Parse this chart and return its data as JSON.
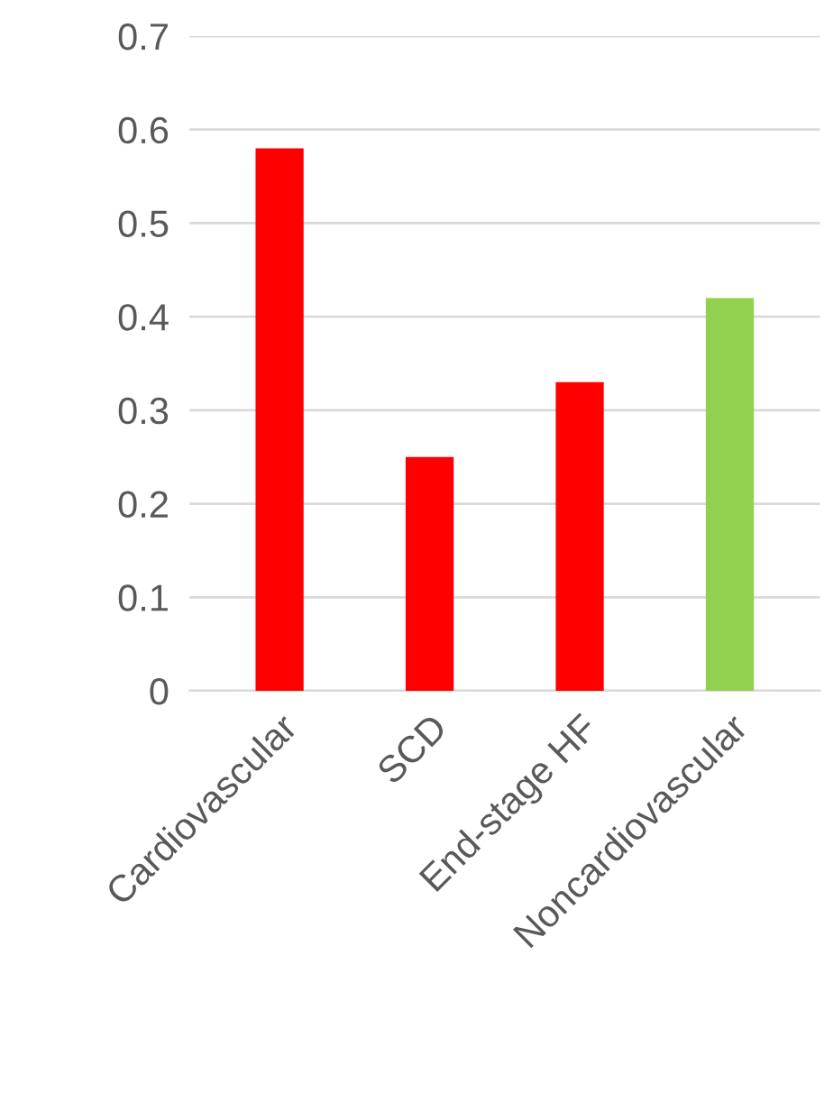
{
  "chart_data": {
    "type": "bar",
    "categories": [
      "Cardiovascular",
      "SCD",
      "End-stage HF",
      "Noncardiovascular"
    ],
    "values": [
      0.58,
      0.25,
      0.33,
      0.42
    ],
    "colors": [
      "#ff0000",
      "#ff0000",
      "#ff0000",
      "#92d050"
    ],
    "ylim": [
      0,
      0.7
    ],
    "yticks": [
      0,
      0.1,
      0.2,
      0.3,
      0.4,
      0.5,
      0.6,
      0.7
    ],
    "grid": "y"
  }
}
